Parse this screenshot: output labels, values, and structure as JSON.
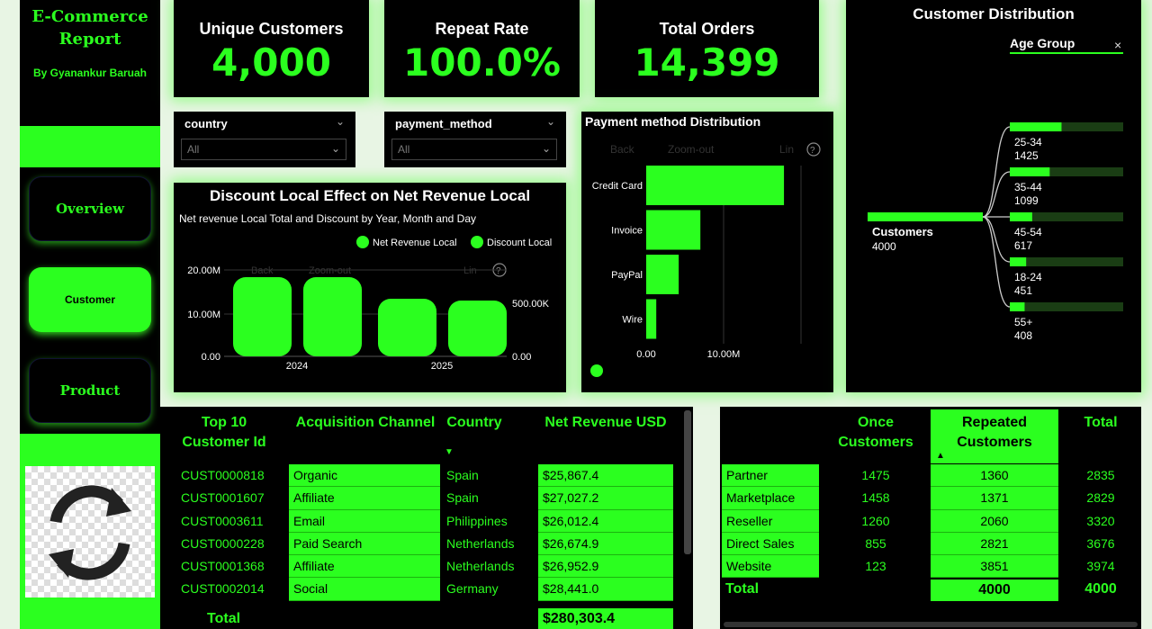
{
  "nav": {
    "title_line1": "E-Commerce",
    "title_line2": "Report",
    "byline": "By Gyanankur Baruah",
    "overview": "Overview",
    "customer": "Customer",
    "product": "Product"
  },
  "kpis": [
    {
      "label": "Unique Customers",
      "value": "4,000"
    },
    {
      "label": "Repeat Rate",
      "value": "100.0%"
    },
    {
      "label": "Total Orders",
      "value": "14,399"
    }
  ],
  "slicers": [
    {
      "label": "country",
      "value": "All"
    },
    {
      "label": "payment_method",
      "value": "All"
    }
  ],
  "discount_chart": {
    "title": "Discount Local Effect on Net Revenue Local",
    "subtitle": "Net revenue Local Total and Discount by Year, Month and Day",
    "legend": [
      "Net Revenue Local",
      "Discount Local"
    ],
    "left_ticks": [
      "20.00M",
      "10.00M",
      "0.00"
    ],
    "right_ticks": [
      "500.00K",
      "0.00"
    ],
    "years": [
      "2024",
      "2025"
    ],
    "toolbar": [
      "Back",
      "Zoom-out",
      "Lin"
    ],
    "help": "?"
  },
  "chart_data": {
    "type": "bar",
    "title": "Payment method Distribution",
    "categories": [
      "Credit Card",
      "Invoice",
      "PayPal",
      "Wire"
    ],
    "values": [
      17800000,
      7000000,
      4200000,
      1300000
    ],
    "xticks": [
      "0.00",
      "10.00M"
    ],
    "xlim": [
      0,
      20000000
    ],
    "toolbar": [
      "Back",
      "Zoom-out",
      "Lin"
    ],
    "help": "?"
  },
  "distribution": {
    "title": "Customer Distribution",
    "field": "Age Group",
    "close": "×",
    "root_label": "Customers",
    "root_value": "4000",
    "root_total": 4000,
    "groups": [
      {
        "label": "25-34",
        "value": "1425",
        "count": 1425
      },
      {
        "label": "35-44",
        "value": "1099",
        "count": 1099
      },
      {
        "label": "45-54",
        "value": "617",
        "count": 617
      },
      {
        "label": "18-24",
        "value": "451",
        "count": 451
      },
      {
        "label": "55+",
        "value": "408",
        "count": 408
      }
    ]
  },
  "top_customers": {
    "headers": [
      "Top 10\nCustomer Id",
      "Acquisition Channel",
      "Country",
      "Net Revenue USD"
    ],
    "sort_arrow": "▼",
    "rows": [
      [
        "CUST0000818",
        "Organic",
        "Spain",
        "$25,867.4"
      ],
      [
        "CUST0001607",
        "Affiliate",
        "Spain",
        "$27,027.2"
      ],
      [
        "CUST0003611",
        "Email",
        "Philippines",
        "$26,012.4"
      ],
      [
        "CUST0000228",
        "Paid Search",
        "Netherlands",
        "$26,674.9"
      ],
      [
        "CUST0001368",
        "Affiliate",
        "Netherlands",
        "$26,952.9"
      ],
      [
        "CUST0002014",
        "Social",
        "Germany",
        "$28,441.0"
      ]
    ],
    "total_label": "Total",
    "total_value": "$280,303.4"
  },
  "channel_table": {
    "headers": [
      "Once\nCustomers",
      "Repeated\nCustomers",
      "Total"
    ],
    "sort_arrow": "▲",
    "rows": [
      [
        "Partner",
        "1475",
        "1360",
        "2835"
      ],
      [
        "Marketplace",
        "1458",
        "1371",
        "2829"
      ],
      [
        "Reseller",
        "1260",
        "2060",
        "3320"
      ],
      [
        "Direct Sales",
        "855",
        "2821",
        "3676"
      ],
      [
        "Website",
        "123",
        "3851",
        "3974"
      ]
    ],
    "total_label": "Total",
    "total_repeated": "4000",
    "total_total": "4000"
  },
  "colors": {
    "accent": "#2bff1f",
    "panel": "#000000",
    "background": "#e8f5e4"
  }
}
